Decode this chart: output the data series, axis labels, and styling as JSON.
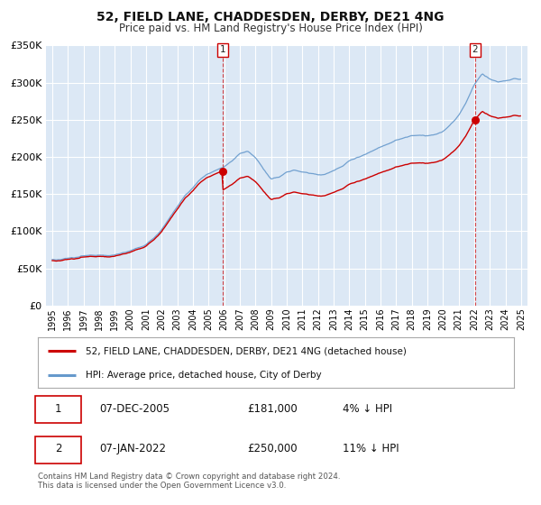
{
  "title": "52, FIELD LANE, CHADDESDEN, DERBY, DE21 4NG",
  "subtitle": "Price paid vs. HM Land Registry's House Price Index (HPI)",
  "yticks": [
    0,
    50000,
    100000,
    150000,
    200000,
    250000,
    300000,
    350000
  ],
  "xticks": [
    1995,
    1996,
    1997,
    1998,
    1999,
    2000,
    2001,
    2002,
    2003,
    2004,
    2005,
    2006,
    2007,
    2008,
    2009,
    2010,
    2011,
    2012,
    2013,
    2014,
    2015,
    2016,
    2017,
    2018,
    2019,
    2020,
    2021,
    2022,
    2023,
    2024,
    2025
  ],
  "property_color": "#cc0000",
  "hpi_color": "#6699cc",
  "plot_bg_color": "#dce8f5",
  "grid_color": "#ffffff",
  "sale1_x": 2005.92,
  "sale1_y": 181000,
  "sale2_x": 2022.04,
  "sale2_y": 250000,
  "vline_color": "#cc0000",
  "fig_bg_color": "#ffffff",
  "legend_label_property": "52, FIELD LANE, CHADDESDEN, DERBY, DE21 4NG (detached house)",
  "legend_label_hpi": "HPI: Average price, detached house, City of Derby",
  "note1_date": "07-DEC-2005",
  "note1_price": "£181,000",
  "note1_hpi": "4% ↓ HPI",
  "note2_date": "07-JAN-2022",
  "note2_price": "£250,000",
  "note2_hpi": "11% ↓ HPI",
  "footer": "Contains HM Land Registry data © Crown copyright and database right 2024.\nThis data is licensed under the Open Government Licence v3.0."
}
